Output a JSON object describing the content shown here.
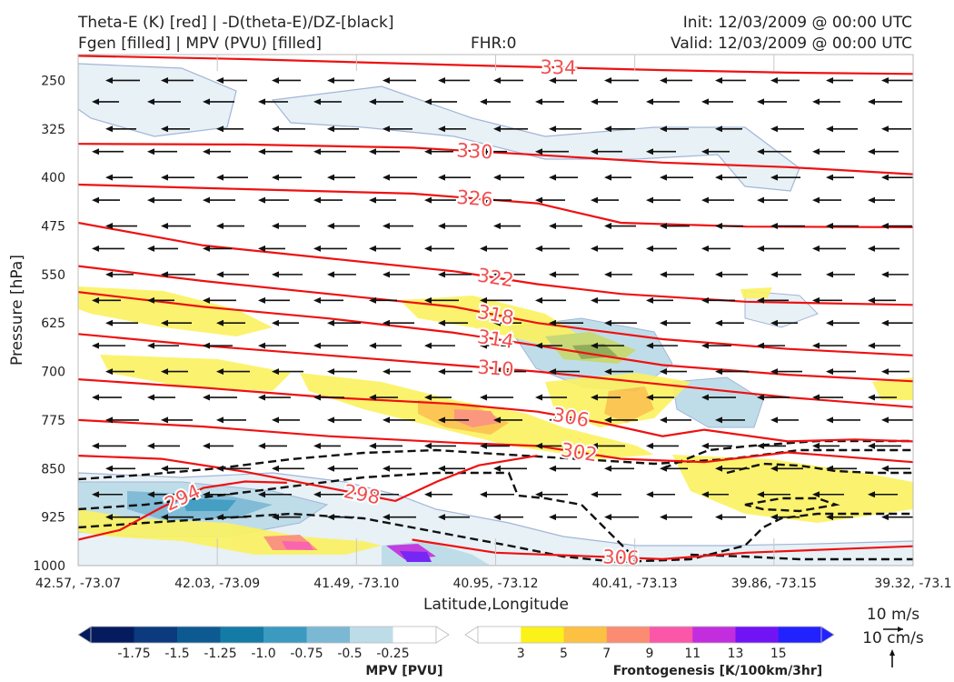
{
  "header": {
    "title_line1": "Theta-E (K) [red] | -D(theta-E)/DZ-[black]",
    "title_line2": "Fgen [filled] | MPV (PVU) [filled]",
    "fhr": "FHR:0",
    "init": "Init: 12/03/2009 @ 00:00 UTC",
    "valid": "Valid: 12/03/2009 @ 00:00 UTC"
  },
  "chart_data": {
    "type": "cross-section",
    "xlabel": "Latitude,Longitude",
    "ylabel": "Pressure [hPa]",
    "x_ticks": [
      "42.57, -73.07",
      "42.03, -73.09",
      "41.49, -73.10",
      "40.95, -73.12",
      "40.41, -73.13",
      "39.86, -73.15",
      "39.32, -73.1"
    ],
    "y_ticks": [
      250,
      325,
      400,
      475,
      550,
      625,
      700,
      775,
      850,
      925,
      1000
    ],
    "ylim": [
      1000,
      210
    ],
    "y_log": false,
    "theta_e_color": "#ee1111",
    "theta_e_contours": [
      {
        "value": 334,
        "label": "334",
        "points": [
          [
            0,
            212
          ],
          [
            0.2,
            217
          ],
          [
            0.45,
            226
          ],
          [
            0.7,
            234
          ],
          [
            0.85,
            238
          ],
          [
            1,
            240
          ]
        ]
      },
      {
        "value": 330,
        "label": "330",
        "points": [
          [
            0,
            348
          ],
          [
            0.2,
            349
          ],
          [
            0.4,
            354
          ],
          [
            0.55,
            365
          ],
          [
            0.7,
            377
          ],
          [
            0.85,
            384
          ],
          [
            1,
            395
          ]
        ]
      },
      {
        "value": 326,
        "label": "326",
        "points": [
          [
            0,
            411
          ],
          [
            0.2,
            418
          ],
          [
            0.4,
            425
          ],
          [
            0.55,
            440
          ],
          [
            0.65,
            470
          ],
          [
            0.8,
            476
          ],
          [
            1,
            477
          ]
        ]
      },
      {
        "value": 322,
        "label": "322",
        "points": [
          [
            0,
            470
          ],
          [
            0.15,
            505
          ],
          [
            0.3,
            525
          ],
          [
            0.45,
            545
          ],
          [
            0.55,
            565
          ],
          [
            0.65,
            580
          ],
          [
            0.8,
            592
          ],
          [
            1,
            597
          ]
        ]
      },
      {
        "value": 318,
        "label": "318",
        "points": [
          [
            0,
            537
          ],
          [
            0.15,
            560
          ],
          [
            0.3,
            580
          ],
          [
            0.45,
            600
          ],
          [
            0.55,
            625
          ],
          [
            0.7,
            650
          ],
          [
            0.85,
            665
          ],
          [
            1,
            675
          ]
        ]
      },
      {
        "value": 314,
        "label": "314",
        "points": [
          [
            0,
            577
          ],
          [
            0.15,
            600
          ],
          [
            0.3,
            618
          ],
          [
            0.45,
            640
          ],
          [
            0.55,
            660
          ],
          [
            0.7,
            690
          ],
          [
            0.85,
            705
          ],
          [
            1,
            715
          ]
        ]
      },
      {
        "value": 310,
        "label": "310",
        "points": [
          [
            0,
            642
          ],
          [
            0.15,
            660
          ],
          [
            0.3,
            675
          ],
          [
            0.45,
            690
          ],
          [
            0.55,
            700
          ],
          [
            0.7,
            720
          ],
          [
            0.85,
            740
          ],
          [
            1,
            755
          ]
        ]
      },
      {
        "value": 306,
        "label": "306",
        "points": [
          [
            0,
            712
          ],
          [
            0.15,
            725
          ],
          [
            0.3,
            740
          ],
          [
            0.45,
            750
          ],
          [
            0.55,
            762
          ],
          [
            0.63,
            780
          ],
          [
            0.7,
            800
          ],
          [
            0.75,
            790
          ],
          [
            0.85,
            808
          ],
          [
            0.93,
            805
          ],
          [
            1,
            808
          ]
        ]
      },
      {
        "value": 302,
        "label": "302",
        "points": [
          [
            0,
            775
          ],
          [
            0.15,
            785
          ],
          [
            0.3,
            800
          ],
          [
            0.45,
            810
          ],
          [
            0.55,
            815
          ],
          [
            0.65,
            835
          ],
          [
            0.75,
            840
          ],
          [
            0.85,
            825
          ],
          [
            0.93,
            833
          ],
          [
            1,
            840
          ]
        ]
      },
      {
        "value": 298,
        "label": "298",
        "points": [
          [
            0,
            830
          ],
          [
            0.1,
            835
          ],
          [
            0.2,
            855
          ],
          [
            0.3,
            880
          ],
          [
            0.38,
            900
          ],
          [
            0.43,
            870
          ],
          [
            0.48,
            845
          ],
          [
            0.55,
            830
          ]
        ]
      },
      {
        "value": 294,
        "label": "294",
        "points": [
          [
            0,
            960
          ],
          [
            0.05,
            945
          ],
          [
            0.1,
            910
          ],
          [
            0.15,
            880
          ],
          [
            0.2,
            870
          ],
          [
            0.25,
            872
          ]
        ]
      },
      {
        "value": 306,
        "label": "306",
        "points": [
          [
            0.4,
            960
          ],
          [
            0.5,
            980
          ],
          [
            0.6,
            985
          ],
          [
            0.7,
            990
          ],
          [
            0.8,
            980
          ],
          [
            0.9,
            975
          ],
          [
            1,
            970
          ]
        ]
      }
    ],
    "mpv_colorbar": {
      "label": "MPV [PVU]",
      "ticks": [
        "-1.75",
        "-1.5",
        "-1.25",
        "-1.0",
        "-0.75",
        "-0.5",
        "-0.25"
      ],
      "colors": [
        "#041c5e",
        "#0b3a7e",
        "#0d5a92",
        "#147ba6",
        "#3a9ac0",
        "#7bb8d4",
        "#bcdce8",
        "#ffffff"
      ]
    },
    "fgen_colorbar": {
      "label": "Frontogenesis [K/100km/3hr]",
      "ticks": [
        "3",
        "5",
        "7",
        "9",
        "11",
        "13",
        "15"
      ],
      "colors": [
        "#ffffff",
        "#fbf219",
        "#fcc043",
        "#fb8c72",
        "#fb57a8",
        "#c22edd",
        "#7014f6",
        "#2222ff"
      ]
    },
    "wind_reference": {
      "horizontal": "10 m/s",
      "vertical": "10 cm/s"
    }
  }
}
